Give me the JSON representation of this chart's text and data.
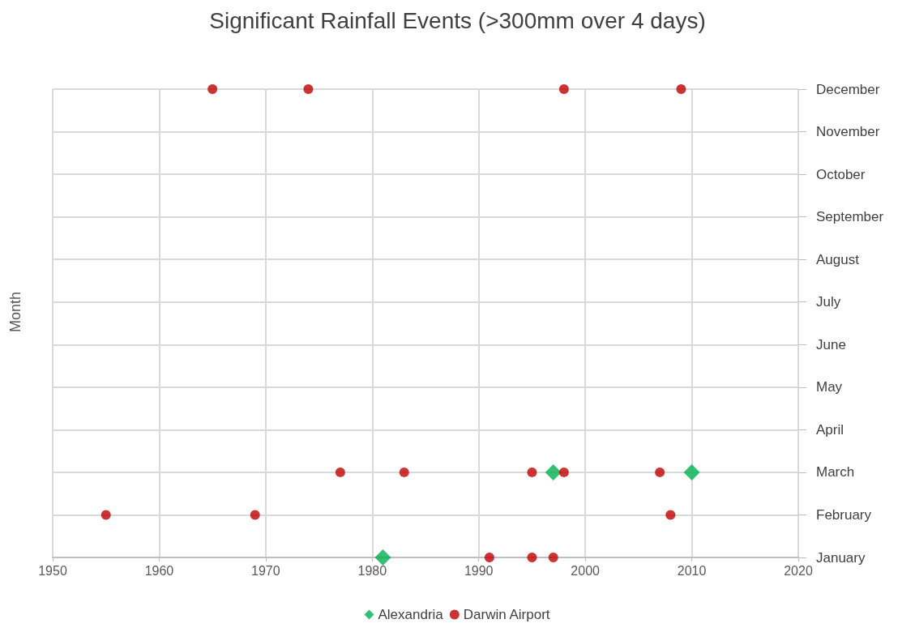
{
  "chart_data": {
    "type": "scatter",
    "orientation": "horizontal",
    "title": "Significant Rainfall Events (>300mm over 4 days)",
    "ylabel": "Month",
    "xlim": [
      1950,
      2020
    ],
    "xticks": [
      1950,
      1960,
      1970,
      1980,
      1990,
      2000,
      2010,
      2020
    ],
    "categories": [
      "December",
      "November",
      "October",
      "September",
      "August",
      "July",
      "June",
      "May",
      "April",
      "March",
      "February",
      "January"
    ],
    "grid": true,
    "legend": "bottom",
    "series": [
      {
        "name": "Alexandria",
        "color": "#00b050",
        "marker": "diamond",
        "x": [
          "January",
          "March",
          "March"
        ],
        "values": [
          1981,
          1997,
          2010
        ]
      },
      {
        "name": "Darwin Airport",
        "color": "#c00000",
        "marker": "circle",
        "x": [
          "December",
          "December",
          "December",
          "December",
          "March",
          "March",
          "March",
          "March",
          "March",
          "February",
          "February",
          "February",
          "January",
          "January",
          "January"
        ],
        "values": [
          1965,
          1974,
          1998,
          2009,
          1977,
          1983,
          1995,
          1998,
          2007,
          1955,
          1969,
          2008,
          1991,
          1995,
          1997
        ]
      }
    ]
  }
}
